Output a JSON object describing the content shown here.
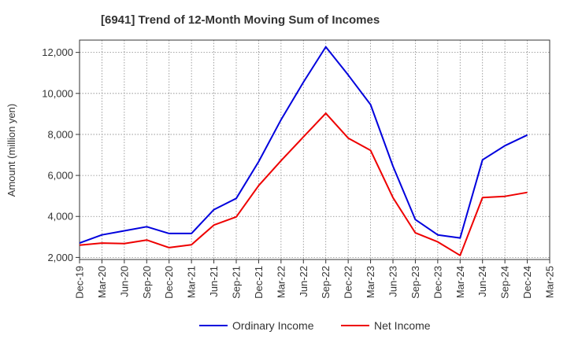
{
  "chart_data": {
    "type": "line",
    "title": "[6941]  Trend of 12-Month Moving Sum of Incomes",
    "xlabel": "",
    "ylabel": "Amount (million yen)",
    "ylim": [
      1900,
      12600
    ],
    "yticks": [
      2000,
      4000,
      6000,
      8000,
      10000,
      12000
    ],
    "ytick_labels": [
      "2,000",
      "4,000",
      "6,000",
      "8,000",
      "10,000",
      "12,000"
    ],
    "categories": [
      "Dec-19",
      "Mar-20",
      "Jun-20",
      "Sep-20",
      "Dec-20",
      "Mar-21",
      "Jun-21",
      "Sep-21",
      "Dec-21",
      "Mar-22",
      "Jun-22",
      "Sep-22",
      "Dec-22",
      "Mar-23",
      "Jun-23",
      "Sep-23",
      "Dec-23",
      "Mar-24",
      "Jun-24",
      "Sep-24",
      "Dec-24",
      "Mar-25"
    ],
    "grid": true,
    "legend_position": "bottom-center",
    "series": [
      {
        "name": "Ordinary Income",
        "color": "#0000dd",
        "values": [
          2700,
          3100,
          3300,
          3500,
          3170,
          3170,
          4330,
          4880,
          6670,
          8720,
          10550,
          12270,
          10900,
          9450,
          6450,
          3850,
          3100,
          2950,
          6760,
          7450,
          7970,
          null
        ]
      },
      {
        "name": "Net Income",
        "color": "#ee0000",
        "values": [
          2600,
          2700,
          2680,
          2850,
          2480,
          2620,
          3580,
          3980,
          5500,
          6720,
          7880,
          9030,
          7820,
          7220,
          4920,
          3200,
          2760,
          2100,
          4920,
          4980,
          5170,
          null
        ]
      }
    ]
  }
}
